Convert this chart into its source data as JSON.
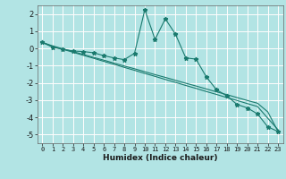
{
  "xlabel": "Humidex (Indice chaleur)",
  "bg_color": "#b2e4e4",
  "grid_color_major": "#ffffff",
  "grid_color_minor": "#ffaaaa",
  "line_color": "#1a7a6e",
  "xlim": [
    -0.5,
    23.5
  ],
  "ylim": [
    -5.5,
    2.5
  ],
  "yticks": [
    -5,
    -4,
    -3,
    -2,
    -1,
    0,
    1,
    2
  ],
  "xticks": [
    0,
    1,
    2,
    3,
    4,
    5,
    6,
    7,
    8,
    9,
    10,
    11,
    12,
    13,
    14,
    15,
    16,
    17,
    18,
    19,
    20,
    21,
    22,
    23
  ],
  "series1_x": [
    0,
    1,
    2,
    3,
    4,
    5,
    6,
    7,
    8,
    9,
    10,
    11,
    12,
    13,
    14,
    15,
    16,
    17,
    18,
    19,
    20,
    21,
    22,
    23
  ],
  "series1_y": [
    0.35,
    0.07,
    -0.05,
    -0.15,
    -0.18,
    -0.25,
    -0.42,
    -0.55,
    -0.65,
    -0.28,
    2.25,
    0.52,
    1.72,
    0.82,
    -0.55,
    -0.62,
    -1.65,
    -2.4,
    -2.75,
    -3.25,
    -3.45,
    -3.8,
    -4.55,
    -4.82
  ],
  "series2_x": [
    0,
    1,
    2,
    3,
    4,
    5,
    6,
    7,
    8,
    9,
    10,
    11,
    12,
    13,
    14,
    15,
    16,
    17,
    18,
    19,
    20,
    21,
    22,
    23
  ],
  "series2_y": [
    0.35,
    0.15,
    -0.02,
    -0.18,
    -0.35,
    -0.52,
    -0.68,
    -0.85,
    -1.02,
    -1.18,
    -1.35,
    -1.52,
    -1.68,
    -1.85,
    -2.02,
    -2.18,
    -2.35,
    -2.52,
    -2.68,
    -2.85,
    -3.02,
    -3.18,
    -3.68,
    -4.82
  ],
  "series3_x": [
    0,
    1,
    2,
    3,
    4,
    5,
    6,
    7,
    8,
    9,
    10,
    11,
    12,
    13,
    14,
    15,
    16,
    17,
    18,
    19,
    20,
    21,
    22,
    23
  ],
  "series3_y": [
    0.35,
    0.12,
    -0.05,
    -0.22,
    -0.4,
    -0.57,
    -0.75,
    -0.92,
    -1.1,
    -1.27,
    -1.45,
    -1.62,
    -1.8,
    -1.97,
    -2.15,
    -2.32,
    -2.5,
    -2.67,
    -2.85,
    -3.02,
    -3.2,
    -3.37,
    -4.05,
    -4.72
  ]
}
